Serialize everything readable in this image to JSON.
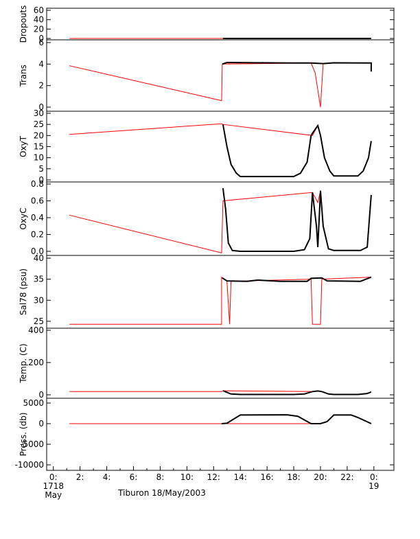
{
  "caption": "Tiburon 18/May/2003",
  "chart_data": [
    {
      "type": "line",
      "ylabel": "Dropouts",
      "ylim": [
        0,
        60
      ],
      "yticks": [
        "60",
        "40",
        "20",
        "0"
      ],
      "ytick_values": [
        60,
        40,
        20,
        0
      ],
      "ylabel_bounds": [
        -3,
        60
      ],
      "series": [
        {
          "color": "#ff0000",
          "points": [
            [
              1.2,
              0
            ],
            [
              12.6,
              0
            ],
            [
              19.4,
              0
            ],
            [
              20.2,
              0
            ]
          ]
        },
        {
          "color": "#000000",
          "points": [
            [
              12.7,
              0
            ],
            [
              15.0,
              0
            ],
            [
              17.5,
              0
            ],
            [
              19.3,
              0
            ],
            [
              20.3,
              0
            ],
            [
              22.0,
              0
            ],
            [
              23.8,
              0
            ]
          ]
        }
      ]
    },
    {
      "type": "line",
      "ylabel": "Trans",
      "ylim": [
        0,
        6
      ],
      "yticks": [
        "6",
        "4",
        "2",
        "0"
      ],
      "ytick_values": [
        6,
        4,
        2,
        0
      ],
      "ylabel_bounds": [
        0,
        6
      ],
      "series": [
        {
          "color": "#ff0000",
          "points": [
            [
              1.2,
              3.85
            ],
            [
              12.6,
              0.6
            ],
            [
              12.65,
              4.0
            ],
            [
              19.3,
              4.1
            ],
            [
              19.6,
              3.2
            ],
            [
              20.0,
              0.0
            ],
            [
              20.2,
              4.05
            ]
          ]
        },
        {
          "color": "#000000",
          "points": [
            [
              12.65,
              4.0
            ],
            [
              13.0,
              4.15
            ],
            [
              16.0,
              4.12
            ],
            [
              18.0,
              4.1
            ],
            [
              19.3,
              4.1
            ],
            [
              20.2,
              4.05
            ],
            [
              21.0,
              4.12
            ],
            [
              23.8,
              4.1
            ],
            [
              23.8,
              3.3
            ]
          ]
        }
      ]
    },
    {
      "type": "line",
      "ylabel": "OxyT",
      "ylim": [
        0,
        30
      ],
      "yticks": [
        "30",
        "25",
        "20",
        "15",
        "10",
        "5",
        "0"
      ],
      "ytick_values": [
        30,
        25,
        20,
        15,
        10,
        5,
        0
      ],
      "ylabel_bounds": [
        0,
        30
      ],
      "series": [
        {
          "color": "#ff0000",
          "points": [
            [
              1.2,
              20.5
            ],
            [
              12.6,
              25.3
            ],
            [
              12.7,
              25.0
            ],
            [
              19.4,
              20.0
            ],
            [
              19.8,
              24.5
            ]
          ]
        },
        {
          "color": "#000000",
          "points": [
            [
              12.7,
              25.0
            ],
            [
              13.0,
              15.0
            ],
            [
              13.3,
              7.0
            ],
            [
              13.7,
              3.0
            ],
            [
              14.0,
              1.5
            ],
            [
              18.0,
              1.5
            ],
            [
              18.5,
              3.0
            ],
            [
              19.0,
              8.0
            ],
            [
              19.3,
              20.0
            ],
            [
              19.4,
              21.0
            ],
            [
              19.8,
              24.5
            ],
            [
              20.0,
              20.0
            ],
            [
              20.3,
              10.0
            ],
            [
              20.7,
              4.0
            ],
            [
              21.0,
              1.8
            ],
            [
              22.8,
              1.8
            ],
            [
              23.2,
              4.0
            ],
            [
              23.6,
              10.0
            ],
            [
              23.8,
              17.5
            ]
          ]
        }
      ]
    },
    {
      "type": "line",
      "ylabel": "OxyC",
      "ylim": [
        0,
        0.8
      ],
      "yticks": [
        "0.8",
        "0.6",
        "0.4",
        "0.2",
        "0.0"
      ],
      "ytick_values": [
        0.8,
        0.6,
        0.4,
        0.2,
        0.0
      ],
      "ylabel_bounds": [
        0,
        0.8
      ],
      "series": [
        {
          "color": "#ff0000",
          "points": [
            [
              1.2,
              0.43
            ],
            [
              12.6,
              -0.02
            ],
            [
              12.7,
              0.6
            ],
            [
              19.4,
              0.7
            ],
            [
              19.8,
              0.58
            ],
            [
              20.0,
              0.72
            ]
          ]
        },
        {
          "color": "#000000",
          "points": [
            [
              12.7,
              0.75
            ],
            [
              12.9,
              0.5
            ],
            [
              13.1,
              0.1
            ],
            [
              13.4,
              0.01
            ],
            [
              14.0,
              0.0
            ],
            [
              18.0,
              0.0
            ],
            [
              18.8,
              0.02
            ],
            [
              19.2,
              0.15
            ],
            [
              19.4,
              0.7
            ],
            [
              19.7,
              0.3
            ],
            [
              19.8,
              0.05
            ],
            [
              20.0,
              0.72
            ],
            [
              20.2,
              0.3
            ],
            [
              20.6,
              0.03
            ],
            [
              21.0,
              0.01
            ],
            [
              23.0,
              0.01
            ],
            [
              23.5,
              0.05
            ],
            [
              23.8,
              0.67
            ]
          ]
        }
      ]
    },
    {
      "type": "line",
      "ylabel": "Sal78 (psu)",
      "ylim": [
        24,
        40
      ],
      "yticks": [
        "40",
        "35",
        "30",
        "25"
      ],
      "ytick_values": [
        40,
        35,
        30,
        25
      ],
      "ylabel_bounds": [
        24,
        40
      ],
      "series": [
        {
          "color": "#ff0000",
          "points": [
            [
              1.2,
              24.3
            ],
            [
              12.6,
              24.3
            ],
            [
              12.6,
              35.5
            ],
            [
              13.0,
              34.5
            ],
            [
              13.2,
              24.3
            ],
            [
              13.3,
              34.5
            ],
            [
              19.3,
              35.0
            ],
            [
              19.4,
              24.3
            ],
            [
              20.0,
              24.3
            ],
            [
              20.1,
              35.0
            ],
            [
              23.8,
              35.5
            ]
          ]
        },
        {
          "color": "#000000",
          "points": [
            [
              12.65,
              35.3
            ],
            [
              13.0,
              34.6
            ],
            [
              14.5,
              34.5
            ],
            [
              15.3,
              34.8
            ],
            [
              17.0,
              34.5
            ],
            [
              19.0,
              34.5
            ],
            [
              19.3,
              35.2
            ],
            [
              20.1,
              35.3
            ],
            [
              20.5,
              34.6
            ],
            [
              23.0,
              34.5
            ],
            [
              23.8,
              35.5
            ]
          ]
        }
      ]
    },
    {
      "type": "line",
      "ylabel": "Temp. (C)",
      "ylim": [
        0,
        400
      ],
      "yticks": [
        "400",
        "200",
        "0"
      ],
      "ytick_values": [
        400,
        200,
        0
      ],
      "ylabel_bounds": [
        0,
        400
      ],
      "series": [
        {
          "color": "#ff0000",
          "points": [
            [
              1.2,
              20
            ],
            [
              12.6,
              20
            ],
            [
              12.7,
              25
            ],
            [
              19.4,
              20
            ],
            [
              19.8,
              24
            ],
            [
              20.0,
              20
            ]
          ]
        },
        {
          "color": "#000000",
          "points": [
            [
              12.7,
              25
            ],
            [
              13.3,
              5
            ],
            [
              14.0,
              2
            ],
            [
              18.0,
              2
            ],
            [
              18.8,
              5
            ],
            [
              19.4,
              20
            ],
            [
              19.8,
              24
            ],
            [
              20.1,
              20
            ],
            [
              20.6,
              5
            ],
            [
              21.0,
              2
            ],
            [
              22.8,
              2
            ],
            [
              23.5,
              8
            ],
            [
              23.8,
              18
            ]
          ]
        }
      ]
    },
    {
      "type": "line",
      "ylabel": "Press. (db)",
      "ylim": [
        -10500,
        5500
      ],
      "yticks": [
        "5000",
        "0",
        "-5000",
        "-10000"
      ],
      "ytick_values": [
        5000,
        0,
        -5000,
        -10000
      ],
      "ylabel_bounds": [
        -10500,
        5500
      ],
      "series": [
        {
          "color": "#ff0000",
          "points": [
            [
              1.2,
              0
            ],
            [
              12.6,
              0
            ],
            [
              19.3,
              0
            ],
            [
              20.0,
              0
            ]
          ]
        },
        {
          "color": "#000000",
          "points": [
            [
              12.6,
              0
            ],
            [
              13.0,
              100
            ],
            [
              14.0,
              2100
            ],
            [
              17.5,
              2150
            ],
            [
              18.3,
              1800
            ],
            [
              19.3,
              0
            ],
            [
              20.0,
              0
            ],
            [
              20.5,
              500
            ],
            [
              21.0,
              2100
            ],
            [
              22.3,
              2100
            ],
            [
              22.8,
              1500
            ],
            [
              23.8,
              0
            ]
          ]
        }
      ]
    }
  ],
  "xaxis": {
    "xlim": [
      -0.5,
      25.5
    ],
    "ticks": [
      {
        "value": 0,
        "label": "0:"
      },
      {
        "value": 2,
        "label": "2:"
      },
      {
        "value": 4,
        "label": "4:"
      },
      {
        "value": 6,
        "label": "6:"
      },
      {
        "value": 8,
        "label": "8:"
      },
      {
        "value": 10,
        "label": "10:"
      },
      {
        "value": 12,
        "label": "12:"
      },
      {
        "value": 14,
        "label": "14:"
      },
      {
        "value": 16,
        "label": "16:"
      },
      {
        "value": 18,
        "label": "18:"
      },
      {
        "value": 20,
        "label": "20:"
      },
      {
        "value": 22,
        "label": "22:"
      },
      {
        "value": 24,
        "label": "0:"
      }
    ],
    "date_labels": [
      {
        "value": 0,
        "line1": "1718",
        "line2": "May"
      },
      {
        "value": 24,
        "line1": "19",
        "line2": ""
      }
    ]
  }
}
